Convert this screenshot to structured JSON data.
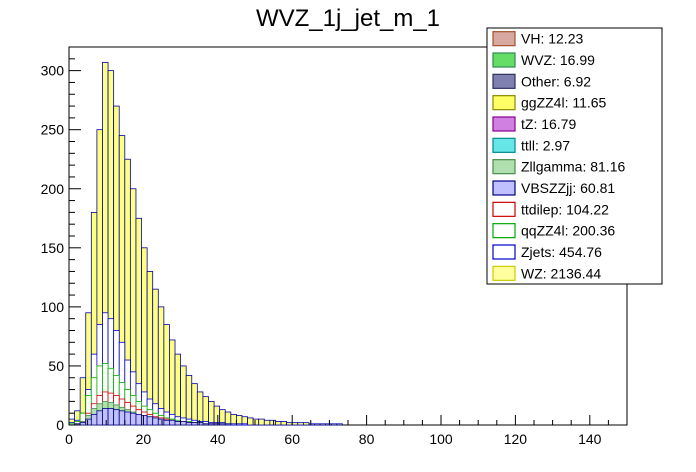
{
  "chart_data": {
    "type": "bar",
    "title": "WVZ_1j_jet_m_1",
    "xlabel": "",
    "ylabel": "",
    "xlim": [
      0,
      150
    ],
    "ylim": [
      0,
      320
    ],
    "bin_width": 1.5,
    "x_ticks": [
      0,
      20,
      40,
      60,
      80,
      100,
      120,
      140
    ],
    "y_ticks": [
      0,
      50,
      100,
      150,
      200,
      250,
      300
    ],
    "legend_position": "top-right",
    "legend": [
      {
        "label": "VH: 12.23",
        "color": "#a0522d",
        "fill": "#d9a8a0"
      },
      {
        "label": "WVZ: 16.99",
        "color": "#2e8b57",
        "fill": "#66dd66"
      },
      {
        "label": "Other: 6.92",
        "color": "#303060",
        "fill": "#8080b0"
      },
      {
        "label": "ggZZ4l: 11.65",
        "color": "#888800",
        "fill": "#ffff66"
      },
      {
        "label": "tZ: 16.79",
        "color": "#8b008b",
        "fill": "#d080e0"
      },
      {
        "label": "ttll: 2.97",
        "color": "#008b8b",
        "fill": "#66e6e6"
      },
      {
        "label": "Zllgamma: 81.16",
        "color": "#4a8a4a",
        "fill": "#b0e0b0"
      },
      {
        "label": "VBSZZjj: 60.81",
        "color": "#000080",
        "fill": "#c0c0ff"
      },
      {
        "label": "ttdilep: 104.22",
        "color": "#cc0000",
        "fill": "#ffffff"
      },
      {
        "label": "qqZZ4l: 200.36",
        "color": "#00aa00",
        "fill": "#ffffff"
      },
      {
        "label": "Zjets: 454.76",
        "color": "#0000cc",
        "fill": "#ffffff"
      },
      {
        "label": "WZ: 2136.44",
        "color": "#cccc00",
        "fill": "#ffffa0"
      }
    ],
    "series": [
      {
        "name": "WZ: 2136.44",
        "color": "#ffff80",
        "edge": "#0000aa",
        "values": [
          5,
          12,
          40,
          95,
          180,
          250,
          307,
          300,
          270,
          245,
          225,
          200,
          175,
          150,
          130,
          115,
          100,
          85,
          72,
          60,
          50,
          42,
          35,
          28,
          24,
          20,
          16,
          13,
          11,
          9,
          8,
          7,
          6,
          5,
          5,
          4,
          4,
          3,
          3,
          2,
          2,
          2,
          2,
          1,
          1,
          1,
          1,
          1,
          1,
          0,
          0,
          0,
          0,
          0,
          0,
          0,
          0,
          0,
          0,
          0
        ]
      },
      {
        "name": "Zjets: 454.76",
        "color": "#ffffff",
        "edge": "#0000cc",
        "values": [
          2,
          4,
          10,
          30,
          60,
          85,
          95,
          90,
          80,
          70,
          55,
          45,
          35,
          28,
          22,
          18,
          14,
          11,
          9,
          7,
          6,
          5,
          4,
          3,
          3,
          2,
          2,
          2,
          1,
          1,
          1,
          1,
          0,
          0,
          0,
          0,
          0,
          0,
          0,
          0,
          0,
          0,
          0,
          0,
          0,
          0,
          0,
          0,
          0,
          0,
          0,
          0,
          0,
          0,
          0,
          0,
          0,
          0,
          0,
          0
        ]
      },
      {
        "name": "qqZZ4l: 200.36",
        "color": "#ffffff",
        "edge": "#00aa00",
        "values": [
          1,
          3,
          10,
          25,
          40,
          50,
          52,
          48,
          42,
          36,
          30,
          25,
          20,
          16,
          13,
          10,
          8,
          6,
          5,
          4,
          3,
          3,
          2,
          2,
          1,
          1,
          1,
          1,
          0,
          0,
          0,
          0,
          0,
          0,
          0,
          0,
          0,
          0,
          0,
          0,
          0,
          0,
          0,
          0,
          0,
          0,
          0,
          0,
          0,
          0,
          0,
          0,
          0,
          0,
          0,
          0,
          0,
          0,
          0,
          0
        ]
      },
      {
        "name": "ttdilep: 104.22",
        "color": "#ffffff",
        "edge": "#cc0000",
        "values": [
          0,
          1,
          3,
          10,
          18,
          25,
          28,
          27,
          25,
          22,
          19,
          16,
          13,
          11,
          9,
          7,
          6,
          5,
          4,
          3,
          3,
          2,
          2,
          1,
          1,
          1,
          1,
          0,
          0,
          0,
          0,
          0,
          0,
          0,
          0,
          0,
          0,
          0,
          0,
          0,
          0,
          0,
          0,
          0,
          0,
          0,
          0,
          0,
          0,
          0,
          0,
          0,
          0,
          0,
          0,
          0,
          0,
          0,
          0,
          0
        ]
      },
      {
        "name": "Zllgamma: 81.16",
        "color": "#b0e0b0",
        "edge": "#4a8a4a",
        "values": [
          0,
          1,
          3,
          8,
          14,
          18,
          20,
          19,
          17,
          15,
          13,
          11,
          9,
          7,
          6,
          5,
          4,
          3,
          2,
          2,
          1,
          1,
          1,
          1,
          0,
          0,
          0,
          0,
          0,
          0,
          0,
          0,
          0,
          0,
          0,
          0,
          0,
          0,
          0,
          0,
          0,
          0,
          0,
          0,
          0,
          0,
          0,
          0,
          0,
          0,
          0,
          0,
          0,
          0,
          0,
          0,
          0,
          0,
          0,
          0
        ]
      },
      {
        "name": "VBSZZjj: 60.81",
        "color": "#c0c0ff",
        "edge": "#000080",
        "values": [
          0,
          1,
          2,
          5,
          9,
          12,
          14,
          14,
          13,
          12,
          11,
          10,
          9,
          8,
          7,
          6,
          5,
          4,
          4,
          3,
          3,
          2,
          2,
          2,
          1,
          1,
          1,
          1,
          1,
          0,
          0,
          0,
          0,
          0,
          0,
          0,
          0,
          0,
          0,
          0,
          0,
          0,
          0,
          0,
          0,
          0,
          0,
          0,
          0,
          0,
          0,
          0,
          0,
          0,
          0,
          0,
          0,
          0,
          0,
          0
        ]
      }
    ]
  }
}
